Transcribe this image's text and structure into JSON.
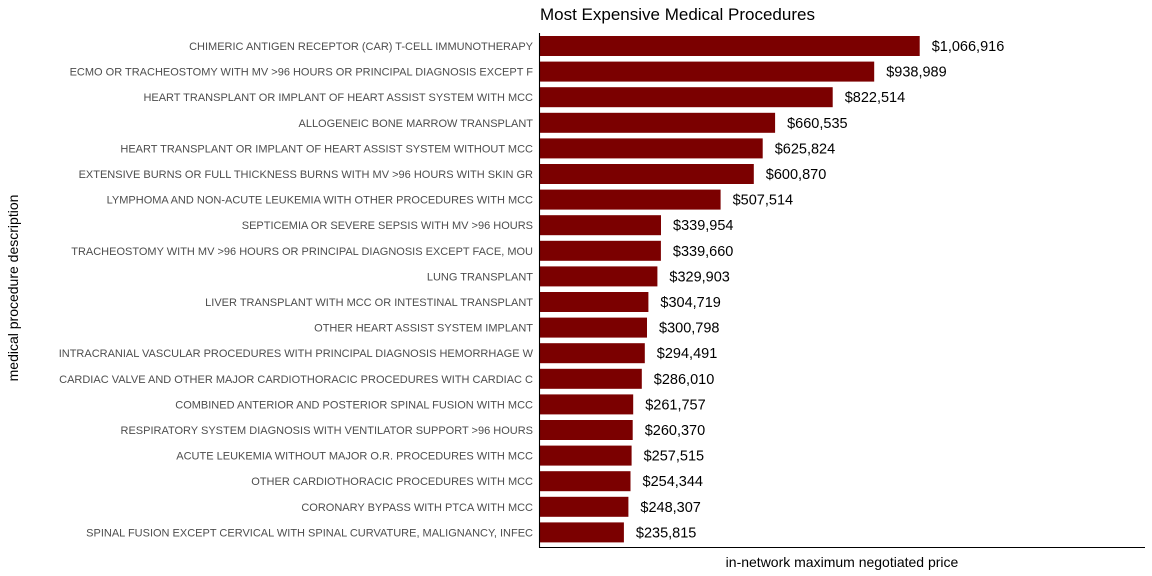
{
  "chart_data": {
    "type": "bar",
    "orientation": "horizontal",
    "title": "Most Expensive Medical Procedures",
    "xlabel": "in-network maximum negotiated price",
    "ylabel": "medical procedure description",
    "bar_color": "#7B0000",
    "grid": false,
    "xlim": [
      0,
      1700000
    ],
    "categories": [
      "CHIMERIC ANTIGEN RECEPTOR (CAR) T-CELL IMMUNOTHERAPY",
      "ECMO OR TRACHEOSTOMY WITH MV >96 HOURS OR PRINCIPAL DIAGNOSIS EXCEPT F",
      "HEART TRANSPLANT OR IMPLANT OF HEART ASSIST SYSTEM WITH MCC",
      "ALLOGENEIC BONE MARROW TRANSPLANT",
      "HEART TRANSPLANT OR IMPLANT OF HEART ASSIST SYSTEM WITHOUT MCC",
      "EXTENSIVE BURNS OR FULL THICKNESS BURNS WITH MV >96 HOURS WITH SKIN GR",
      "LYMPHOMA AND NON-ACUTE LEUKEMIA WITH OTHER PROCEDURES WITH MCC",
      "SEPTICEMIA OR SEVERE SEPSIS WITH MV >96 HOURS",
      "TRACHEOSTOMY WITH MV >96 HOURS OR PRINCIPAL DIAGNOSIS EXCEPT FACE, MOU",
      "LUNG TRANSPLANT",
      "LIVER TRANSPLANT WITH MCC OR INTESTINAL TRANSPLANT",
      "OTHER HEART ASSIST SYSTEM IMPLANT",
      "INTRACRANIAL VASCULAR PROCEDURES WITH PRINCIPAL DIAGNOSIS HEMORRHAGE W",
      "CARDIAC VALVE AND OTHER MAJOR CARDIOTHORACIC PROCEDURES WITH CARDIAC C",
      "COMBINED ANTERIOR AND POSTERIOR SPINAL FUSION WITH MCC",
      "RESPIRATORY SYSTEM DIAGNOSIS WITH VENTILATOR SUPPORT >96 HOURS",
      "ACUTE LEUKEMIA WITHOUT MAJOR O.R. PROCEDURES WITH MCC",
      "OTHER CARDIOTHORACIC PROCEDURES WITH MCC",
      "CORONARY BYPASS WITH PTCA WITH MCC",
      "SPINAL FUSION EXCEPT CERVICAL WITH SPINAL CURVATURE, MALIGNANCY, INFEC"
    ],
    "values": [
      1066916,
      938989,
      822514,
      660535,
      625824,
      600870,
      507514,
      339954,
      339660,
      329903,
      304719,
      300798,
      294491,
      286010,
      261757,
      260370,
      257515,
      254344,
      248307,
      235815
    ],
    "value_labels": [
      "$1,066,916",
      "$938,989",
      "$822,514",
      "$660,535",
      "$625,824",
      "$600,870",
      "$507,514",
      "$339,954",
      "$339,660",
      "$329,903",
      "$304,719",
      "$300,798",
      "$294,491",
      "$286,010",
      "$261,757",
      "$260,370",
      "$257,515",
      "$254,344",
      "$248,307",
      "$235,815"
    ]
  }
}
